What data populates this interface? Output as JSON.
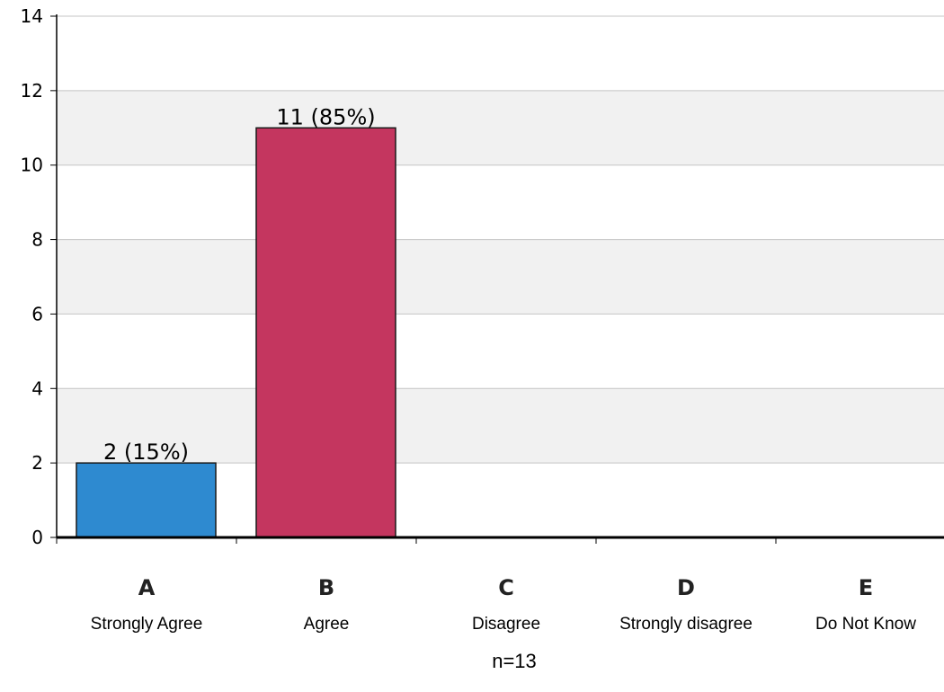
{
  "chart_data": {
    "type": "bar",
    "categories": [
      "A",
      "B",
      "C",
      "D",
      "E"
    ],
    "category_descriptions": [
      "Strongly Agree",
      "Agree",
      "Disagree",
      "Strongly disagree",
      "Do Not Know"
    ],
    "values": [
      2,
      11,
      0,
      0,
      0
    ],
    "data_labels": [
      "2 (15%)",
      "11 (85%)",
      "",
      "",
      ""
    ],
    "bar_colors": [
      "#2e8ad0",
      "#c4365f",
      "",
      "",
      ""
    ],
    "title": "",
    "xlabel": "",
    "ylabel": "",
    "ylim": [
      0,
      14
    ],
    "y_ticks": [
      "0",
      "2",
      "4",
      "6",
      "8",
      "10",
      "12",
      "14"
    ],
    "grid": true,
    "grid_band_color": "#f1f1f1",
    "note": "n=13"
  }
}
